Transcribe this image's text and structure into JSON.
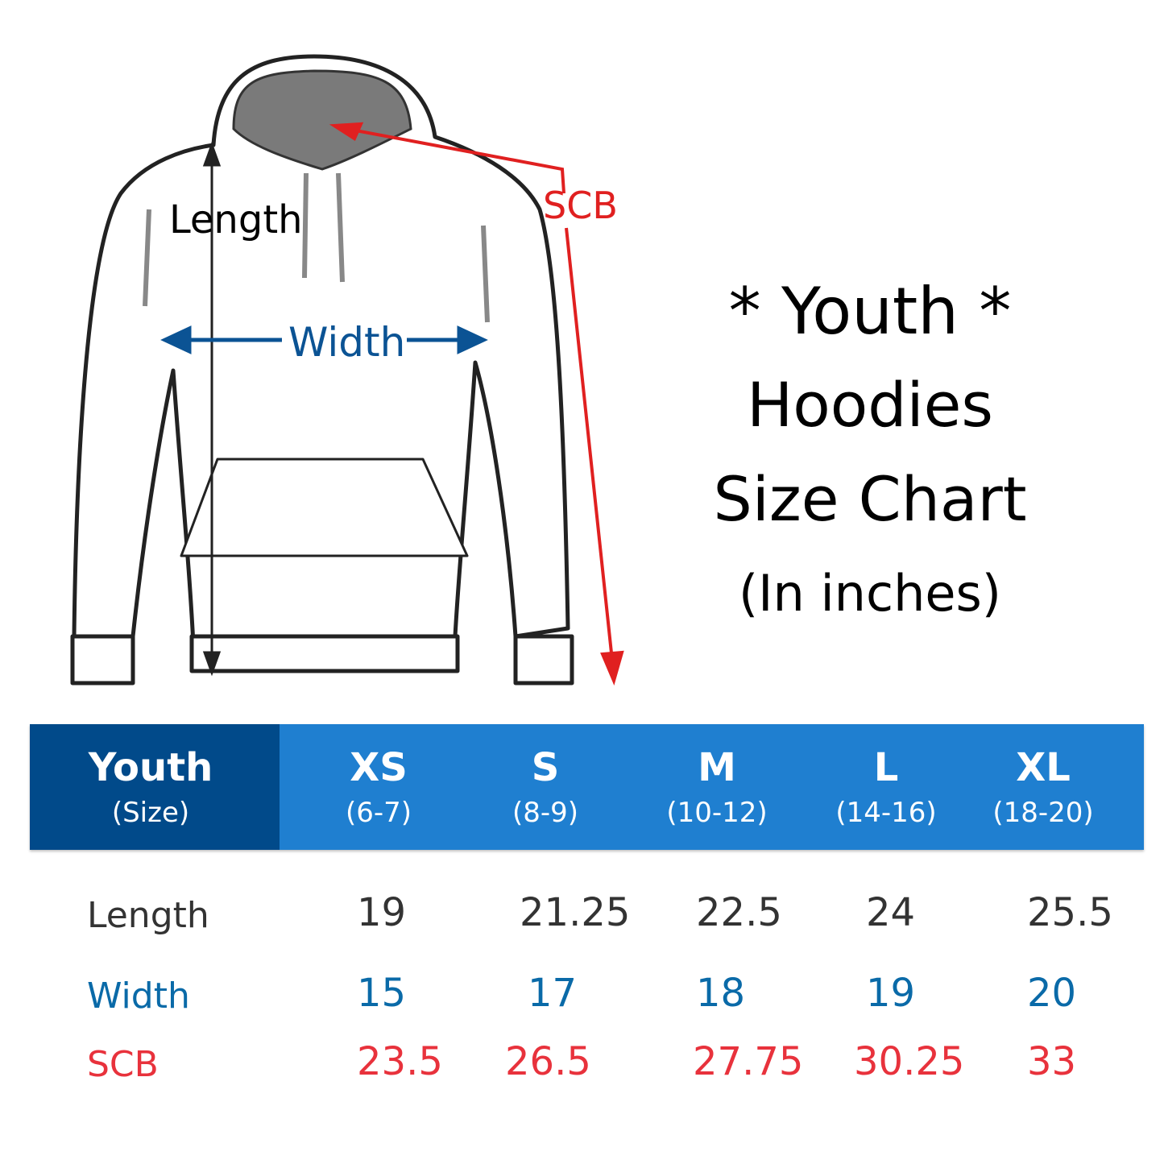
{
  "diagram": {
    "length_label": "Length",
    "width_label": "Width",
    "scb_label": "SCB"
  },
  "title": {
    "line1": "* Youth *",
    "line2": "Hoodies",
    "line3": "Size Chart",
    "line4": "(In inches)"
  },
  "table": {
    "header": {
      "label": "Youth",
      "sublabel": "(Size)"
    },
    "sizes": [
      {
        "size": "XS",
        "range": "(6-7)"
      },
      {
        "size": "S",
        "range": "(8-9)"
      },
      {
        "size": "M",
        "range": "(10-12)"
      },
      {
        "size": "L",
        "range": "(14-16)"
      },
      {
        "size": "XL",
        "range": "(18-20)"
      }
    ],
    "rows": [
      {
        "label": "Length",
        "values": [
          "19",
          "21.25",
          "22.5",
          "24",
          "25.5"
        ],
        "color": "#333333"
      },
      {
        "label": "Width",
        "values": [
          "15",
          "17",
          "18",
          "19",
          "20"
        ],
        "color": "#0a6aa8"
      },
      {
        "label": "SCB",
        "values": [
          "23.5",
          "26.5",
          "27.75",
          "30.25",
          "33"
        ],
        "color": "#e8323c"
      }
    ]
  },
  "colors": {
    "header_dark": "#014a8a",
    "header_light": "#1f7fd0",
    "width_blue": "#0b5394",
    "scb_red": "#e02020"
  }
}
